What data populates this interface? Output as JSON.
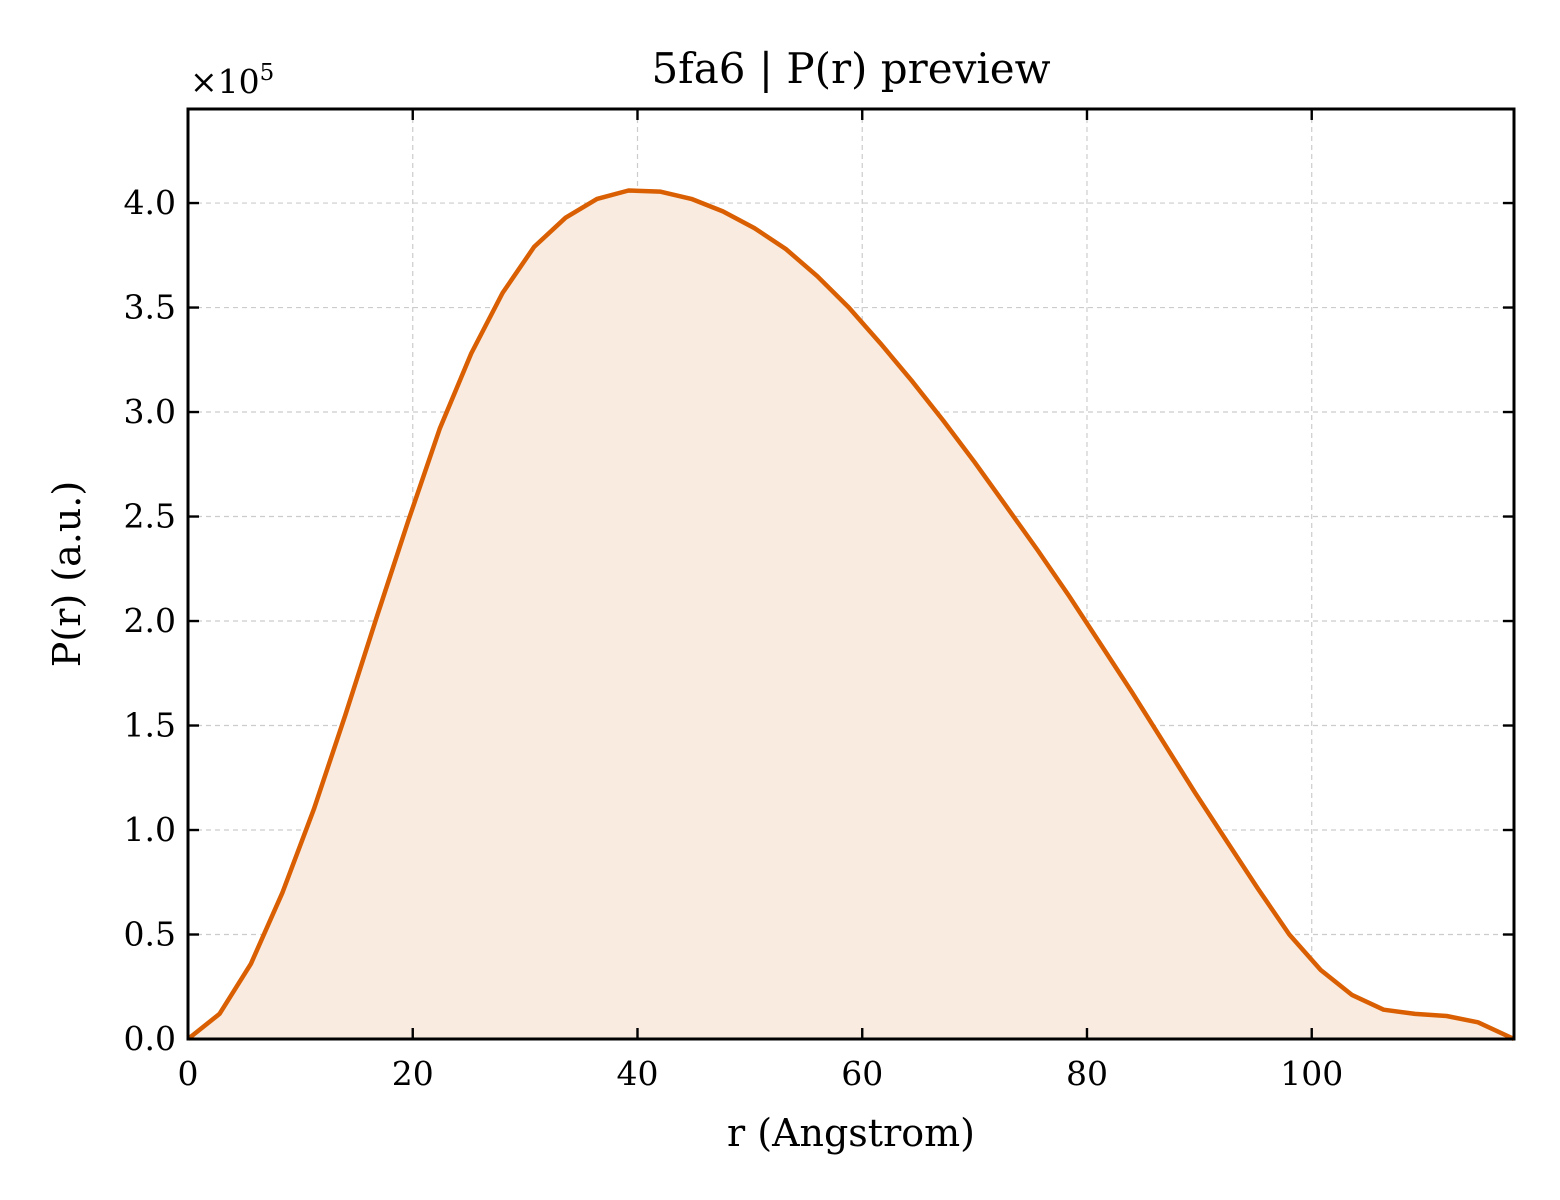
{
  "chart_data": {
    "type": "area",
    "title": "5fa6 | P(r) preview",
    "xlabel": "r (Angstrom)",
    "ylabel": "P(r) (a.u.)",
    "y_offset_label": "×10",
    "y_offset_exponent": "5",
    "xlim": [
      0,
      118
    ],
    "ylim": [
      0,
      4.45
    ],
    "x_ticks": [
      0,
      20,
      40,
      60,
      80,
      100
    ],
    "x_tick_labels": [
      "0",
      "20",
      "40",
      "60",
      "80",
      "100"
    ],
    "y_ticks": [
      0,
      0.5,
      1.0,
      1.5,
      2.0,
      2.5,
      3.0,
      3.5,
      4.0
    ],
    "y_tick_labels": [
      "0.0",
      "0.5",
      "1.0",
      "1.5",
      "2.0",
      "2.5",
      "3.0",
      "3.5",
      "4.0"
    ],
    "grid": true,
    "colors": {
      "line": "#d95f02",
      "fill": "#f9ebe0",
      "grid": "#cccccc"
    },
    "series": [
      {
        "x": [
          0,
          2.8,
          5.6,
          8.4,
          11.2,
          14.0,
          16.8,
          19.6,
          22.4,
          25.2,
          28.0,
          30.8,
          33.6,
          36.4,
          39.2,
          42.0,
          44.8,
          47.6,
          50.4,
          53.2,
          56.0,
          58.8,
          61.6,
          64.4,
          67.2,
          70.0,
          72.8,
          75.6,
          78.4,
          81.2,
          84.0,
          86.8,
          89.6,
          92.4,
          95.2,
          98.0,
          100.8,
          103.6,
          106.4,
          109.2,
          112.0,
          114.8,
          118.0
        ],
        "y": [
          0.0,
          0.12,
          0.36,
          0.7,
          1.1,
          1.55,
          2.02,
          2.48,
          2.92,
          3.28,
          3.57,
          3.79,
          3.93,
          4.02,
          4.06,
          4.055,
          4.02,
          3.96,
          3.88,
          3.78,
          3.65,
          3.5,
          3.33,
          3.15,
          2.96,
          2.76,
          2.55,
          2.34,
          2.12,
          1.89,
          1.66,
          1.42,
          1.18,
          0.95,
          0.72,
          0.5,
          0.33,
          0.21,
          0.14,
          0.12,
          0.11,
          0.08,
          0.0
        ]
      }
    ]
  }
}
